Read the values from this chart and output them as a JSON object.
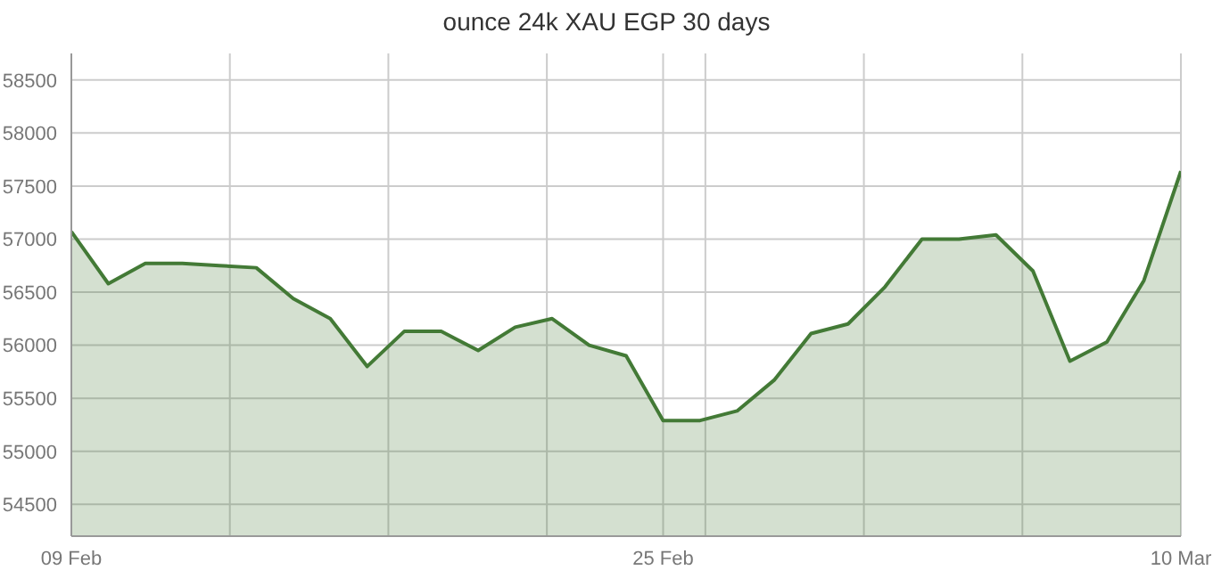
{
  "chart_data": {
    "type": "area",
    "title": "ounce 24k XAU EGP 30 days",
    "x": [
      "--02-09",
      "--02-10",
      "--02-11",
      "--02-12",
      "--02-13",
      "--02-14",
      "--02-15",
      "--02-16",
      "--02-17",
      "--02-18",
      "--02-19",
      "--02-20",
      "--02-21",
      "--02-22",
      "--02-23",
      "--02-24",
      "--02-25",
      "--02-26",
      "--02-27",
      "--02-28",
      "--02-29",
      "--03-01",
      "--03-02",
      "--03-03",
      "--03-04",
      "--03-05",
      "--03-06",
      "--03-07",
      "--03-08",
      "--03-09",
      "--03-10"
    ],
    "series": [
      {
        "color": "#437a36",
        "values": [
          57070,
          56580,
          56770,
          56770,
          56750,
          56730,
          56440,
          56250,
          55800,
          56130,
          56130,
          55950,
          56170,
          56250,
          56000,
          55900,
          55290,
          55290,
          55380,
          55670,
          56110,
          56200,
          56550,
          57000,
          57000,
          57040,
          56700,
          55850,
          56030,
          56610,
          57640
        ]
      }
    ],
    "xlim": [
      "--02-09",
      "--03-10"
    ],
    "xticks": [
      {
        "value": "--02-09",
        "label": "09 Feb"
      },
      {
        "value": "--02-13T06:51",
        "label": null
      },
      {
        "value": "--02-17T13:43",
        "label": null
      },
      {
        "value": "--02-21T20:34",
        "label": null
      },
      {
        "value": "--02-25",
        "label": "25 Feb"
      },
      {
        "value": "--02-26T03:26",
        "label": null
      },
      {
        "value": "--03-01T10:17",
        "label": null
      },
      {
        "value": "--03-05T17:09",
        "label": null
      },
      {
        "value": "--03-10",
        "label": "10 Mar"
      }
    ],
    "ylim": [
      54200,
      58750
    ],
    "yticks": [
      54500,
      55000,
      55500,
      56000,
      56500,
      57000,
      57500,
      58000,
      58500
    ],
    "grid": true,
    "legend": false
  }
}
